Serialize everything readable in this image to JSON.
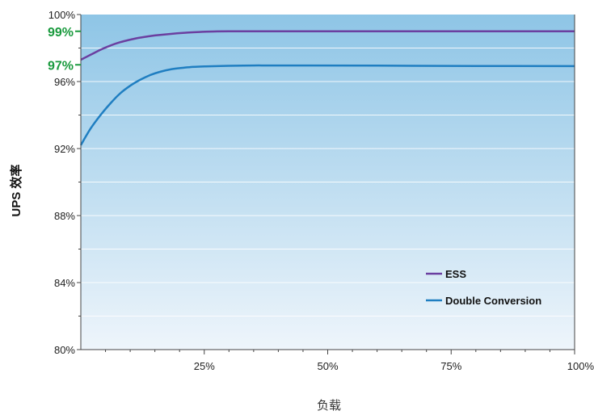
{
  "chart_data": {
    "type": "line",
    "xlabel": "负载",
    "ylabel": "UPS 效率",
    "xlim": [
      0,
      100
    ],
    "ylim": [
      80,
      100
    ],
    "x_ticks": [
      25,
      50,
      75,
      100
    ],
    "x_tick_labels": [
      "25%",
      "50%",
      "75%",
      "100%"
    ],
    "y_ticks": [
      80,
      84,
      88,
      92,
      96,
      100
    ],
    "y_tick_labels": [
      "80%",
      "84%",
      "88%",
      "92%",
      "96%",
      "100%"
    ],
    "highlight_ticks": [
      {
        "value": 99,
        "label": "99%"
      },
      {
        "value": 97,
        "label": "97%"
      }
    ],
    "highlight_color": "#1a9a3e",
    "background_gradient": [
      "#8ec5e6",
      "#eef5fb"
    ],
    "legend_position": "bottom-right",
    "series": [
      {
        "name": "ESS",
        "color": "#6b3fa0",
        "x": [
          0,
          2,
          4,
          6,
          8,
          10,
          12,
          15,
          18,
          21,
          24,
          27,
          30,
          32,
          40,
          50,
          60,
          70,
          80,
          90,
          100
        ],
        "y": [
          97.3,
          97.6,
          97.9,
          98.15,
          98.35,
          98.5,
          98.62,
          98.75,
          98.84,
          98.91,
          98.96,
          98.99,
          99.0,
          99.0,
          99.0,
          99.0,
          99.0,
          99.0,
          99.0,
          99.0,
          99.0
        ]
      },
      {
        "name": "Double Conversion",
        "color": "#1f7ec1",
        "x": [
          0,
          2,
          4,
          6,
          8,
          10,
          12,
          14,
          16,
          18,
          20,
          22,
          25,
          30,
          35,
          38,
          45,
          60,
          80,
          100
        ],
        "y": [
          92.2,
          93.2,
          94.0,
          94.7,
          95.3,
          95.75,
          96.1,
          96.38,
          96.58,
          96.72,
          96.8,
          96.86,
          96.9,
          96.94,
          96.96,
          96.96,
          96.96,
          96.95,
          96.93,
          96.92
        ]
      }
    ]
  }
}
